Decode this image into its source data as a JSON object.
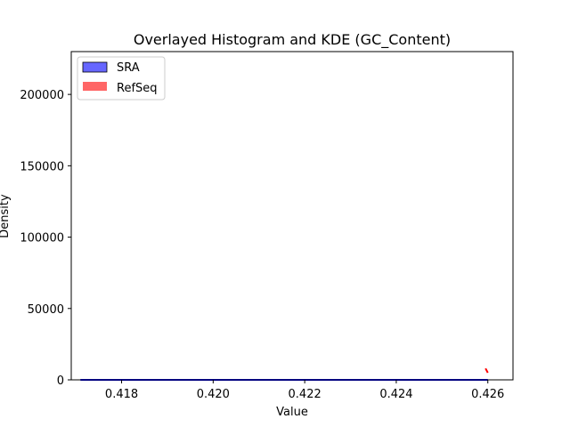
{
  "chart_data": {
    "type": "histogram",
    "title": "Overlayed Histogram and KDE (GC_Content)",
    "xlabel": "Value",
    "ylabel": "Density",
    "xlim": [
      0.4169,
      0.42655
    ],
    "ylim": [
      0,
      230000
    ],
    "xticks": [
      0.418,
      0.42,
      0.422,
      0.424,
      0.426
    ],
    "xtick_labels": [
      "0.418",
      "0.420",
      "0.422",
      "0.424",
      "0.426"
    ],
    "yticks": [
      0,
      50000,
      100000,
      150000,
      200000
    ],
    "ytick_labels": [
      "0",
      "50000",
      "100000",
      "150000",
      "200000"
    ],
    "grid": false,
    "legend_position": "top-left",
    "series": [
      {
        "name": "SRA",
        "color": "#0000ff",
        "kind": "histogram+kde",
        "x": [
          0.4171,
          0.426
        ],
        "density": [
          0,
          0
        ]
      },
      {
        "name": "RefSeq",
        "color": "#ff0000",
        "kind": "histogram+kde",
        "x": [
          0.42595,
          0.426
        ],
        "density": [
          8000,
          5000
        ]
      }
    ]
  }
}
